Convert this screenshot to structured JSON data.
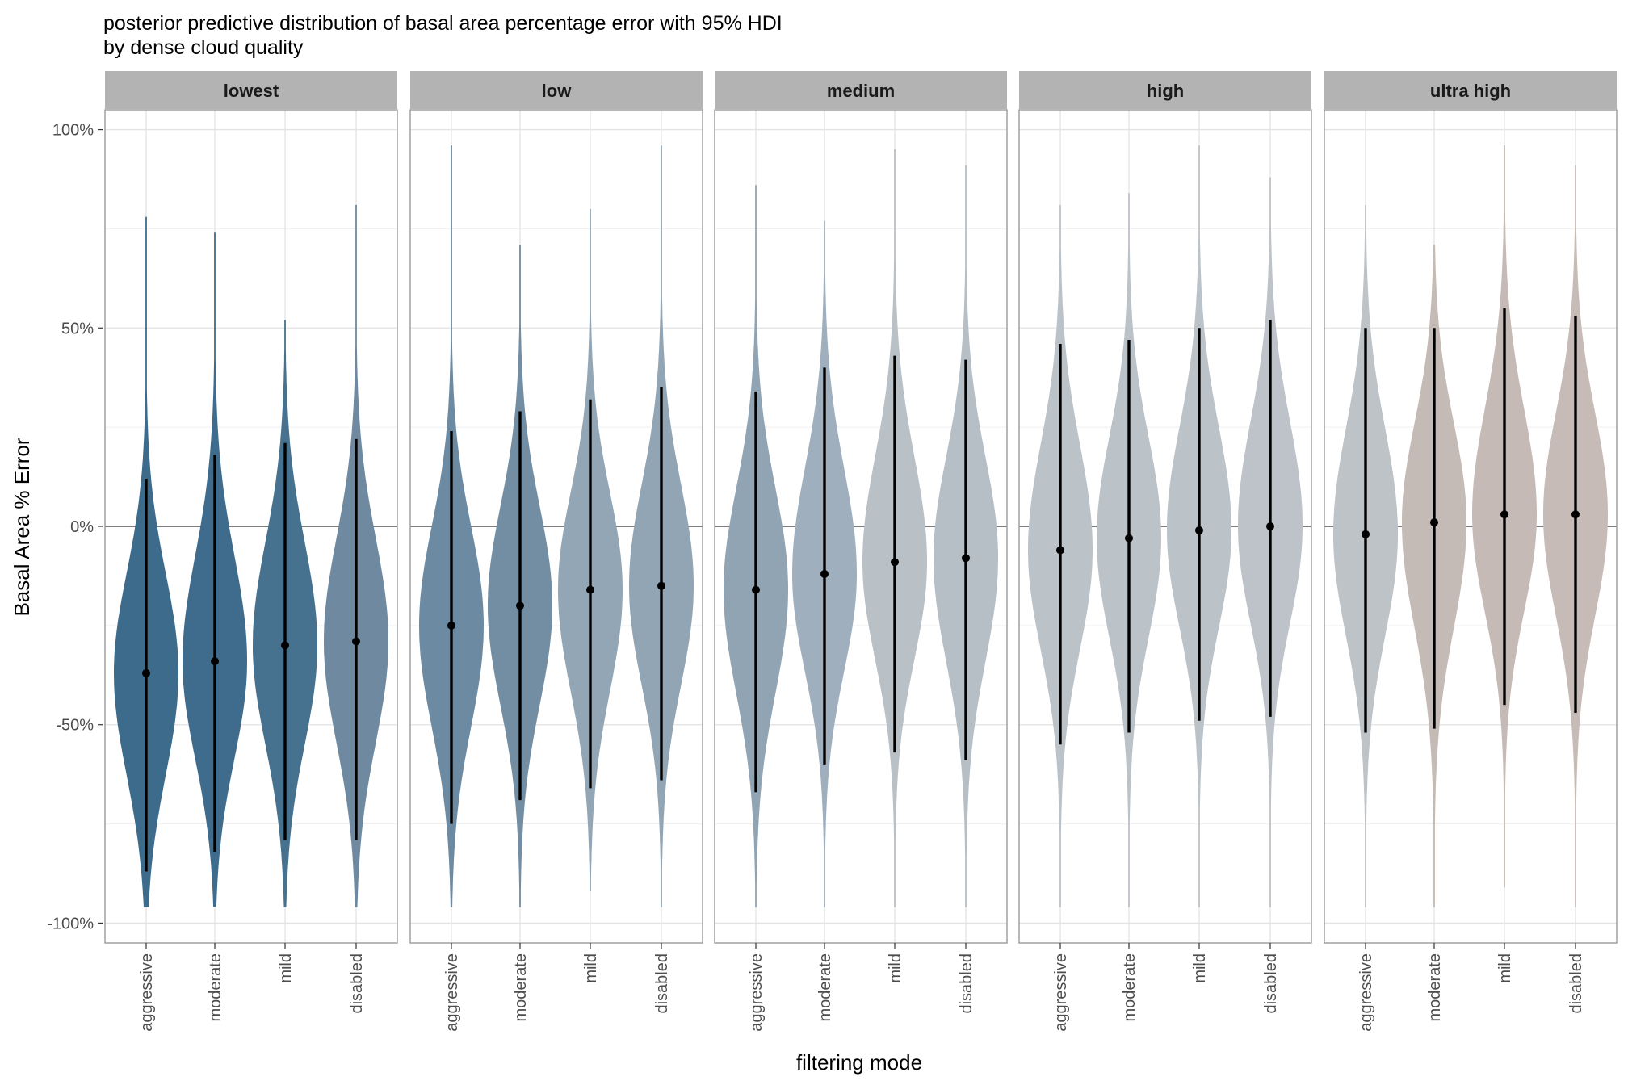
{
  "chart_data": {
    "type": "violin",
    "title": "posterior predictive distribution of basal area percentage error with 95% HDI",
    "subtitle": "by dense cloud quality",
    "xlabel": "filtering mode",
    "ylabel": "Basal Area % Error",
    "ylim": [
      -105,
      105
    ],
    "y_ticks": [
      100,
      50,
      0,
      -50,
      -100
    ],
    "y_tick_labels": [
      "100%",
      "50%",
      "0%",
      "-50%",
      "-100%"
    ],
    "reference_line_y": 0,
    "categories": [
      "aggressive",
      "moderate",
      "mild",
      "disabled"
    ],
    "panels": [
      {
        "name": "lowest",
        "violins": [
          {
            "category": "aggressive",
            "median": -37,
            "hdi": [
              -87,
              12
            ],
            "min": -96,
            "max": 78,
            "color": "#3d6b8c"
          },
          {
            "category": "moderate",
            "median": -34,
            "hdi": [
              -82,
              18
            ],
            "min": -96,
            "max": 74,
            "color": "#3f6c8c"
          },
          {
            "category": "mild",
            "median": -30,
            "hdi": [
              -79,
              21
            ],
            "min": -96,
            "max": 52,
            "color": "#46728f"
          },
          {
            "category": "disabled",
            "median": -29,
            "hdi": [
              -79,
              22
            ],
            "min": -96,
            "max": 81,
            "color": "#6f8aa0"
          }
        ]
      },
      {
        "name": "low",
        "violins": [
          {
            "category": "aggressive",
            "median": -25,
            "hdi": [
              -75,
              24
            ],
            "min": -96,
            "max": 96,
            "color": "#6c8aa1"
          },
          {
            "category": "moderate",
            "median": -20,
            "hdi": [
              -69,
              29
            ],
            "min": -96,
            "max": 71,
            "color": "#738ea3"
          },
          {
            "category": "mild",
            "median": -16,
            "hdi": [
              -66,
              32
            ],
            "min": -92,
            "max": 80,
            "color": "#93a6b5"
          },
          {
            "category": "disabled",
            "median": -15,
            "hdi": [
              -64,
              35
            ],
            "min": -96,
            "max": 96,
            "color": "#92a5b4"
          }
        ]
      },
      {
        "name": "medium",
        "violins": [
          {
            "category": "aggressive",
            "median": -16,
            "hdi": [
              -67,
              34
            ],
            "min": -96,
            "max": 86,
            "color": "#91a4b4"
          },
          {
            "category": "moderate",
            "median": -12,
            "hdi": [
              -60,
              40
            ],
            "min": -96,
            "max": 77,
            "color": "#9fafbd"
          },
          {
            "category": "mild",
            "median": -9,
            "hdi": [
              -57,
              43
            ],
            "min": -96,
            "max": 95,
            "color": "#b9c0c6"
          },
          {
            "category": "disabled",
            "median": -8,
            "hdi": [
              -59,
              42
            ],
            "min": -96,
            "max": 91,
            "color": "#b7bfc6"
          }
        ]
      },
      {
        "name": "high",
        "violins": [
          {
            "category": "aggressive",
            "median": -6,
            "hdi": [
              -55,
              46
            ],
            "min": -96,
            "max": 81,
            "color": "#bcc3c8"
          },
          {
            "category": "moderate",
            "median": -3,
            "hdi": [
              -52,
              47
            ],
            "min": -96,
            "max": 84,
            "color": "#bcc3c8"
          },
          {
            "category": "mild",
            "median": -1,
            "hdi": [
              -49,
              50
            ],
            "min": -96,
            "max": 96,
            "color": "#bcc3c8"
          },
          {
            "category": "disabled",
            "median": 0,
            "hdi": [
              -48,
              52
            ],
            "min": -96,
            "max": 88,
            "color": "#bdc3c8"
          }
        ]
      },
      {
        "name": "ultra high",
        "violins": [
          {
            "category": "aggressive",
            "median": -2,
            "hdi": [
              -52,
              50
            ],
            "min": -96,
            "max": 81,
            "color": "#bec3c7"
          },
          {
            "category": "moderate",
            "median": 1,
            "hdi": [
              -51,
              50
            ],
            "min": -96,
            "max": 71,
            "color": "#c4bab6"
          },
          {
            "category": "mild",
            "median": 3,
            "hdi": [
              -45,
              55
            ],
            "min": -91,
            "max": 96,
            "color": "#c6bab6"
          },
          {
            "category": "disabled",
            "median": 3,
            "hdi": [
              -47,
              53
            ],
            "min": -96,
            "max": 91,
            "color": "#c6bbb7"
          }
        ]
      }
    ],
    "grid": true,
    "legend": "none"
  }
}
